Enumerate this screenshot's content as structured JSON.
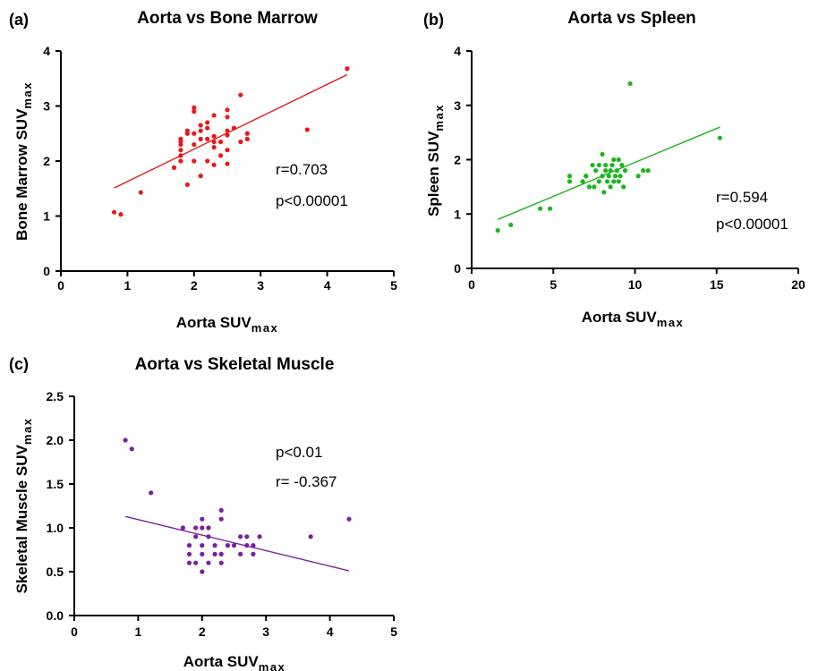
{
  "chart_data": [
    {
      "panel": "(a)",
      "type": "scatter",
      "title": "Aorta vs Bone Marrow",
      "xlabel": "Aorta SUV",
      "xlabel_sub": "max",
      "ylabel": "Bone Marrow SUV",
      "ylabel_sub": "max",
      "xlim": [
        0,
        5
      ],
      "ylim": [
        0,
        4
      ],
      "xticks": [
        0,
        1,
        2,
        3,
        4,
        5
      ],
      "yticks": [
        0,
        1,
        2,
        3,
        4
      ],
      "color": "#e8191c",
      "points": [
        [
          0.8,
          1.07
        ],
        [
          0.9,
          1.03
        ],
        [
          1.2,
          1.43
        ],
        [
          1.7,
          1.88
        ],
        [
          1.8,
          2.0
        ],
        [
          1.8,
          2.1
        ],
        [
          1.8,
          2.2
        ],
        [
          1.8,
          2.3
        ],
        [
          1.8,
          2.35
        ],
        [
          1.8,
          2.4
        ],
        [
          1.9,
          1.57
        ],
        [
          1.9,
          2.5
        ],
        [
          1.9,
          2.55
        ],
        [
          2.0,
          2.0
        ],
        [
          2.0,
          2.3
        ],
        [
          2.0,
          2.5
        ],
        [
          2.0,
          2.9
        ],
        [
          2.0,
          2.97
        ],
        [
          2.1,
          1.73
        ],
        [
          2.1,
          2.4
        ],
        [
          2.1,
          2.55
        ],
        [
          2.1,
          2.65
        ],
        [
          2.2,
          2.0
        ],
        [
          2.2,
          2.4
        ],
        [
          2.2,
          2.6
        ],
        [
          2.2,
          2.7
        ],
        [
          2.3,
          1.93
        ],
        [
          2.3,
          2.25
        ],
        [
          2.3,
          2.35
        ],
        [
          2.3,
          2.45
        ],
        [
          2.3,
          2.83
        ],
        [
          2.4,
          2.1
        ],
        [
          2.4,
          2.35
        ],
        [
          2.5,
          1.95
        ],
        [
          2.5,
          2.2
        ],
        [
          2.5,
          2.47
        ],
        [
          2.5,
          2.55
        ],
        [
          2.5,
          2.8
        ],
        [
          2.5,
          2.93
        ],
        [
          2.6,
          2.6
        ],
        [
          2.7,
          2.35
        ],
        [
          2.7,
          3.2
        ],
        [
          2.8,
          2.4
        ],
        [
          2.8,
          2.5
        ],
        [
          3.7,
          2.57
        ],
        [
          4.3,
          3.68
        ]
      ],
      "fit_line": [
        [
          0.8,
          1.51
        ],
        [
          4.3,
          3.57
        ]
      ],
      "annotations": [
        "r=0.703",
        "p<0.00001"
      ]
    },
    {
      "panel": "(b)",
      "type": "scatter",
      "title": "Aorta vs Spleen",
      "xlabel": "Aorta SUV",
      "xlabel_sub": "max",
      "ylabel": "Spleen SUV",
      "ylabel_sub": "max",
      "xlim": [
        0,
        20
      ],
      "ylim": [
        0,
        4
      ],
      "xticks": [
        0,
        5,
        10,
        15,
        20
      ],
      "yticks": [
        0,
        1,
        2,
        3,
        4
      ],
      "color": "#1db51d",
      "points": [
        [
          1.6,
          0.7
        ],
        [
          2.4,
          0.8
        ],
        [
          4.2,
          1.1
        ],
        [
          4.8,
          1.1
        ],
        [
          6.0,
          1.6
        ],
        [
          6.0,
          1.7
        ],
        [
          6.8,
          1.6
        ],
        [
          7.0,
          1.7
        ],
        [
          7.0,
          1.7
        ],
        [
          7.2,
          1.5
        ],
        [
          7.4,
          1.9
        ],
        [
          7.5,
          1.5
        ],
        [
          7.6,
          1.8
        ],
        [
          7.8,
          1.6
        ],
        [
          7.8,
          1.9
        ],
        [
          8.0,
          1.7
        ],
        [
          8.0,
          2.1
        ],
        [
          8.1,
          1.4
        ],
        [
          8.2,
          1.8
        ],
        [
          8.2,
          1.9
        ],
        [
          8.3,
          1.6
        ],
        [
          8.4,
          1.7
        ],
        [
          8.5,
          1.5
        ],
        [
          8.5,
          1.8
        ],
        [
          8.6,
          1.9
        ],
        [
          8.7,
          1.6
        ],
        [
          8.7,
          2.0
        ],
        [
          8.8,
          1.7
        ],
        [
          8.9,
          1.8
        ],
        [
          9.0,
          1.6
        ],
        [
          9.0,
          2.0
        ],
        [
          9.1,
          1.7
        ],
        [
          9.2,
          1.9
        ],
        [
          9.3,
          1.5
        ],
        [
          9.4,
          1.8
        ],
        [
          9.7,
          3.4
        ],
        [
          10.2,
          1.7
        ],
        [
          10.5,
          1.8
        ],
        [
          10.8,
          1.8
        ],
        [
          15.2,
          2.4
        ]
      ],
      "fit_line": [
        [
          1.6,
          0.9
        ],
        [
          15.2,
          2.6
        ]
      ],
      "annotations": [
        "r=0.594",
        "p<0.00001"
      ]
    },
    {
      "panel": "(c)",
      "type": "scatter",
      "title": "Aorta vs Skeletal Muscle",
      "xlabel": "Aorta SUV",
      "xlabel_sub": "max",
      "ylabel": "Skeletal Muscle SUV",
      "ylabel_sub": "max",
      "xlim": [
        0,
        5
      ],
      "ylim": [
        0,
        2.5
      ],
      "xticks": [
        0,
        1,
        2,
        3,
        4,
        5
      ],
      "yticks": [
        0.0,
        0.5,
        1.0,
        1.5,
        2.0,
        2.5
      ],
      "ytick_labels": [
        "0.0",
        "0.5",
        "1.0",
        "1.5",
        "2.0",
        "2.5"
      ],
      "color": "#7a1fa2",
      "points": [
        [
          0.8,
          2.0
        ],
        [
          0.9,
          1.9
        ],
        [
          1.2,
          1.4
        ],
        [
          1.7,
          1.0
        ],
        [
          1.8,
          0.6
        ],
        [
          1.8,
          0.7
        ],
        [
          1.8,
          0.8
        ],
        [
          1.9,
          0.6
        ],
        [
          1.9,
          0.9
        ],
        [
          1.9,
          1.0
        ],
        [
          2.0,
          0.5
        ],
        [
          2.0,
          0.7
        ],
        [
          2.0,
          0.8
        ],
        [
          2.0,
          1.0
        ],
        [
          2.0,
          1.1
        ],
        [
          2.1,
          0.6
        ],
        [
          2.1,
          0.9
        ],
        [
          2.1,
          1.0
        ],
        [
          2.2,
          0.7
        ],
        [
          2.2,
          0.8
        ],
        [
          2.3,
          0.6
        ],
        [
          2.3,
          0.7
        ],
        [
          2.3,
          1.1
        ],
        [
          2.3,
          1.2
        ],
        [
          2.4,
          0.8
        ],
        [
          2.5,
          0.8
        ],
        [
          2.6,
          0.7
        ],
        [
          2.6,
          0.9
        ],
        [
          2.7,
          0.8
        ],
        [
          2.7,
          0.9
        ],
        [
          2.8,
          0.7
        ],
        [
          2.8,
          0.8
        ],
        [
          2.9,
          0.9
        ],
        [
          3.7,
          0.9
        ],
        [
          4.3,
          1.1
        ]
      ],
      "fit_line": [
        [
          0.8,
          1.13
        ],
        [
          4.3,
          0.51
        ]
      ],
      "annotations": [
        "p<0.01",
        "r= -0.367"
      ]
    }
  ]
}
